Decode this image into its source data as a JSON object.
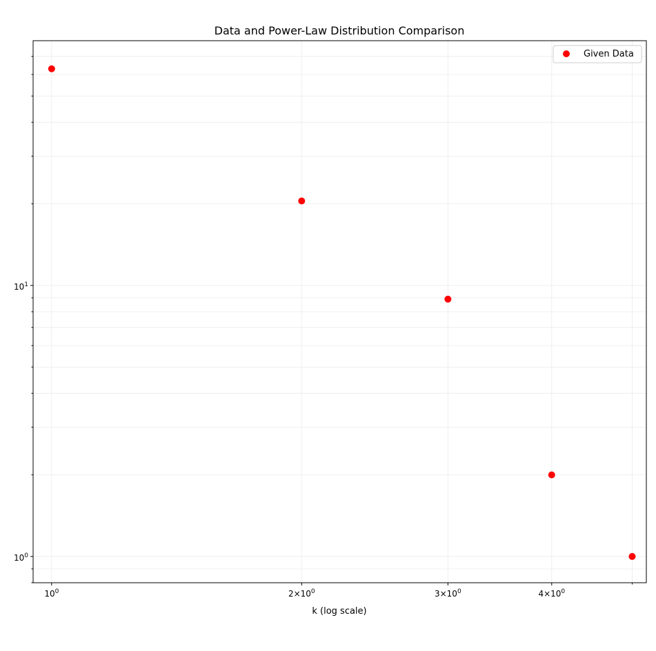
{
  "chart_data": {
    "type": "scatter",
    "title": "Data and Power-Law Distribution Comparison",
    "xlabel": "k (log scale)",
    "ylabel": "",
    "x_scale": "log",
    "y_scale": "log",
    "xlim": [
      0.95,
      5.2
    ],
    "ylim": [
      0.8,
      80
    ],
    "grid": true,
    "legend_position": "top-right",
    "x_ticks": [
      {
        "value": 1,
        "base": "10",
        "exp": "0"
      },
      {
        "value": 2,
        "base": "2×10",
        "exp": "0"
      },
      {
        "value": 3,
        "base": "3×10",
        "exp": "0"
      },
      {
        "value": 4,
        "base": "4×10",
        "exp": "0"
      }
    ],
    "y_ticks": [
      {
        "value": 1,
        "base": "10",
        "exp": "0"
      },
      {
        "value": 10,
        "base": "10",
        "exp": "1"
      }
    ],
    "series": [
      {
        "name": "Given Data",
        "color": "#ff0000",
        "x": [
          1,
          2,
          3,
          4,
          5
        ],
        "y": [
          63,
          20.5,
          8.9,
          2,
          1
        ]
      }
    ]
  }
}
